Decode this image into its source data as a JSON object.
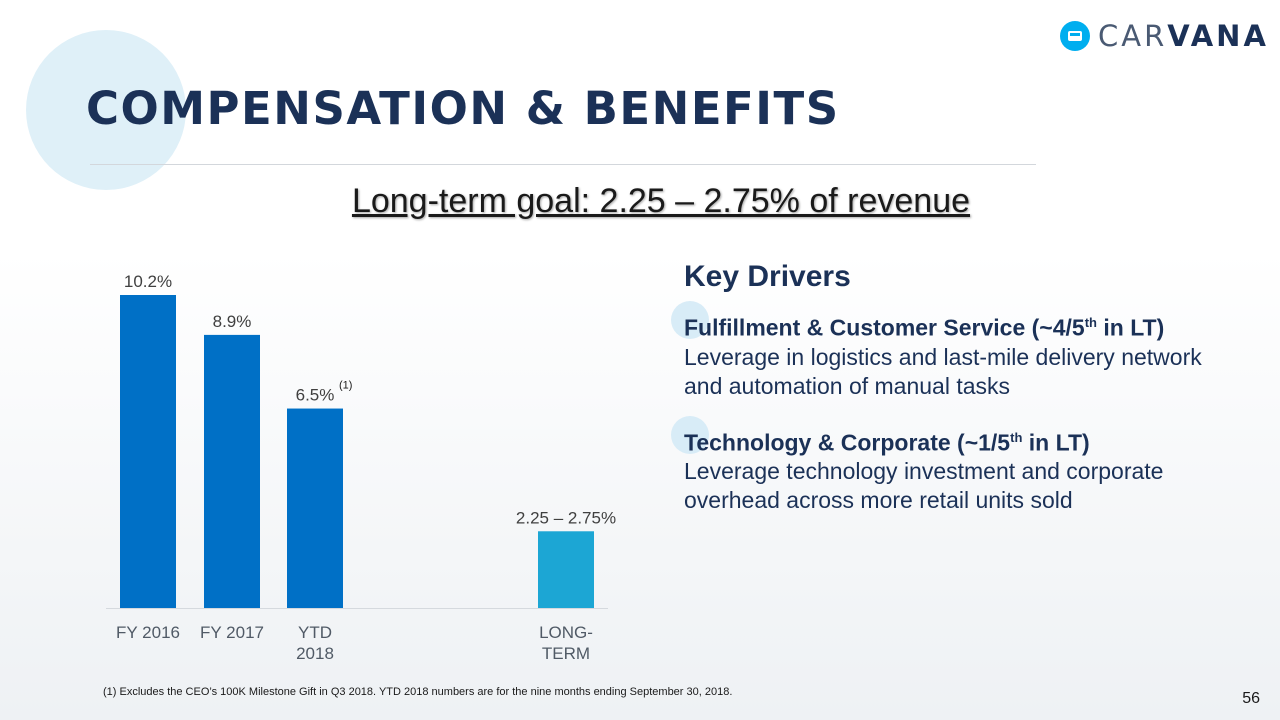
{
  "slide": {
    "title": "Compensation & Benefits",
    "goal": "Long-term goal: 2.25 – 2.75% of revenue",
    "footnote": "(1) Excludes the CEO’s 100K Milestone Gift in Q3 2018. YTD 2018 numbers are for the nine months ending September 30, 2018.",
    "page_number": "56"
  },
  "logo": {
    "text_light": "CAR",
    "text_bold": "VANA",
    "icon": "car-icon"
  },
  "chart_data": {
    "type": "bar",
    "categories": [
      "FY 2016",
      "FY 2017",
      "YTD 2018",
      "LONG-TERM"
    ],
    "category_lines": [
      [
        "FY 2016"
      ],
      [
        "FY 2017"
      ],
      [
        "YTD",
        "2018"
      ],
      [
        "LONG-",
        "TERM"
      ]
    ],
    "values": [
      10.2,
      8.9,
      6.5,
      2.5
    ],
    "value_labels": [
      "10.2%",
      "8.9%",
      "6.5%",
      "2.25 – 2.75%"
    ],
    "annotations": [
      {
        "category": "YTD 2018",
        "text": "(1)"
      }
    ],
    "bar_colors": [
      "#0070c6",
      "#0070c6",
      "#0070c6",
      "#1ca6d4"
    ],
    "ylim": [
      0,
      10.2
    ],
    "grid": false,
    "title": "",
    "xlabel": "",
    "ylabel": ""
  },
  "drivers": {
    "title": "Key Drivers",
    "items": [
      {
        "head": "Fulfillment & Customer Service (~4/5",
        "sup": "th",
        "head_tail": " in LT)",
        "body": "Leverage in logistics and last-mile delivery network and automation of manual tasks"
      },
      {
        "head": "Technology & Corporate (~1/5",
        "sup": "th",
        "head_tail": " in LT)",
        "body": "Leverage technology investment and corporate overhead across more retail units sold"
      }
    ]
  },
  "colors": {
    "navy": "#1b3157",
    "bar": "#0070c6",
    "bar_accent": "#1ca6d4",
    "accent": "#00aeef"
  }
}
